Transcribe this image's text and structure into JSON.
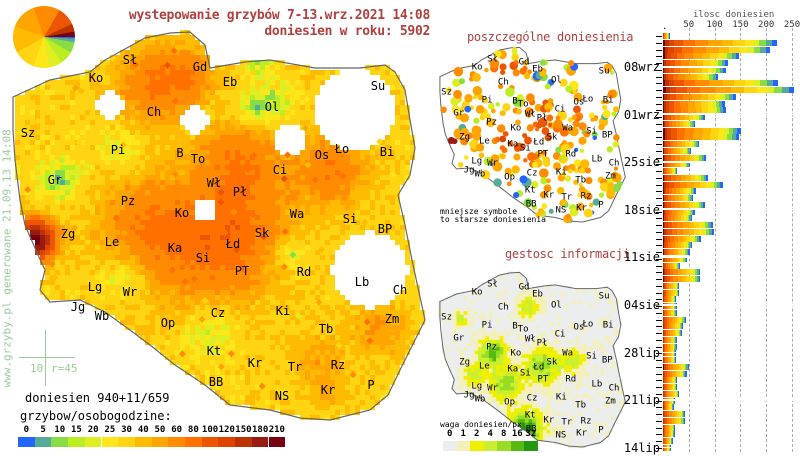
{
  "header": {
    "title": "wystepowanie grzybów 7-13.wrz.2021 14:08",
    "subtitle": "doniesien w roku: 5902"
  },
  "watermark": "www.grzyby.pl generowane 21.09.13 14:08",
  "scale_marker": {
    "distance": "10",
    "radius": "r=45"
  },
  "main_map": {
    "reports": "doniesien 940+11/659",
    "legend_title": "grzybow/osobogodzine:",
    "legend": [
      {
        "label": "0",
        "color": "#2266ff"
      },
      {
        "label": "5",
        "color": "#55aa99"
      },
      {
        "label": "10",
        "color": "#88dd44"
      },
      {
        "label": "15",
        "color": "#bbee22"
      },
      {
        "label": "20",
        "color": "#ddee22"
      },
      {
        "label": "25",
        "color": "#ffe619"
      },
      {
        "label": "30",
        "color": "#ffd511"
      },
      {
        "label": "40",
        "color": "#ffbb00"
      },
      {
        "label": "50",
        "color": "#ffa500"
      },
      {
        "label": "60",
        "color": "#ff8c00"
      },
      {
        "label": "80",
        "color": "#ff7000"
      },
      {
        "label": "100",
        "color": "#ee5500"
      },
      {
        "label": "120",
        "color": "#dd4400"
      },
      {
        "label": "150",
        "color": "#bb3300"
      },
      {
        "label": "180",
        "color": "#991a11"
      },
      {
        "label": "210",
        "color": "#770011"
      }
    ],
    "cities": [
      "Sł",
      "Gd",
      "Eb",
      "Ol",
      "Su",
      "Ko",
      "Ch",
      "Sz",
      "Pi",
      "B",
      "To",
      "Ło",
      "Bi",
      "Os",
      "Ci",
      "Gr",
      "Wł",
      "Pł",
      "Pz",
      "Ko",
      "Wa",
      "Si",
      "Zg",
      "Le",
      "Ka",
      "Sk",
      "Łd",
      "Si",
      "BP",
      "PT",
      "Rd",
      "Lg",
      "Wr",
      "Lb",
      "Ch",
      "Jg",
      "Wb",
      "Op",
      "Cz",
      "Ki",
      "Zm",
      "Tb",
      "Kt",
      "Kr",
      "Tr",
      "Rz",
      "BB",
      "Kr",
      "NS",
      "P"
    ]
  },
  "reports_map": {
    "title": "poszczególne doniesienia",
    "note_line1": "mniejsze symbole",
    "note_line2": "to starsze doniesienia"
  },
  "density_map": {
    "title": "gestosc informacji",
    "legend_title": "waga doniesien/px",
    "legend": [
      {
        "label": "0",
        "color": "#eceeee"
      },
      {
        "label": "1",
        "color": "#f5f0b8"
      },
      {
        "label": "2",
        "color": "#eef000"
      },
      {
        "label": "4",
        "color": "#c8f030"
      },
      {
        "label": "8",
        "color": "#99dd22"
      },
      {
        "label": "16",
        "color": "#55bb11"
      },
      {
        "label": "32",
        "color": "#229911"
      }
    ]
  },
  "chart_data": {
    "type": "bar",
    "orientation": "horizontal-stacked",
    "title": "ilosc doniesien",
    "xlim": [
      0,
      250
    ],
    "xticks": [
      "50",
      "100",
      "150",
      "200",
      "250"
    ],
    "date_labels": [
      "08wrz",
      "01wrz",
      "25sie",
      "18sie",
      "11sie",
      "04sie",
      "28lip",
      "21lip",
      "14lip"
    ],
    "grid": true,
    "values_newest_first": [
      12,
      220,
      207,
      147,
      126,
      121,
      106,
      222,
      254,
      141,
      120,
      122,
      81,
      62,
      150,
      147,
      70,
      54,
      83,
      52,
      27,
      87,
      116,
      63,
      58,
      81,
      61,
      56,
      96,
      98,
      73,
      56,
      51,
      46,
      33,
      72,
      72,
      31,
      31,
      25,
      26,
      26,
      44,
      39,
      36,
      26,
      26,
      24,
      25,
      50,
      45,
      27,
      27,
      31,
      23,
      20,
      43,
      42,
      23,
      22,
      18,
      14
    ]
  }
}
